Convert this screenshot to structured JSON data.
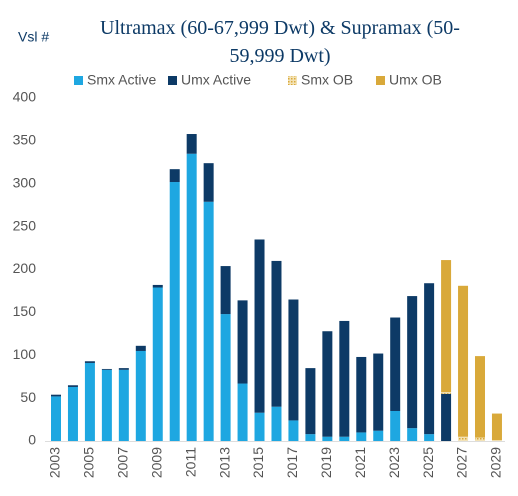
{
  "chart_data": {
    "type": "stacked_bar",
    "title": "Ultramax (60-67,999 Dwt) & Supramax (50-59,999 Dwt)",
    "y_label": "Vsl #",
    "categories": [
      "2003",
      null,
      "2005",
      null,
      "2007",
      null,
      "2009",
      null,
      "2011",
      null,
      "2013",
      null,
      "2015",
      null,
      "2017",
      null,
      "2019",
      null,
      "2021",
      null,
      "2023",
      null,
      "2025",
      null,
      "2027",
      null,
      "2029"
    ],
    "series": [
      {
        "name": "Smx Active",
        "color": "#1ea7e1",
        "values": [
          52,
          63,
          91,
          83,
          83,
          105,
          179,
          302,
          335,
          279,
          148,
          67,
          33,
          40,
          24,
          8,
          5,
          5,
          10,
          12,
          35,
          15,
          8,
          0,
          0,
          0,
          0
        ]
      },
      {
        "name": "Umx Active",
        "color": "#0d3a66",
        "values": [
          2,
          2,
          2,
          1,
          2,
          6,
          3,
          15,
          23,
          45,
          56,
          97,
          202,
          170,
          141,
          77,
          123,
          135,
          88,
          90,
          109,
          154,
          176,
          55,
          0,
          0,
          0
        ]
      },
      {
        "name": "Smx OB",
        "color": "#d9a93a",
        "hatch": true,
        "values": [
          0,
          0,
          0,
          0,
          0,
          0,
          0,
          0,
          0,
          0,
          0,
          0,
          0,
          0,
          0,
          0,
          0,
          0,
          0,
          0,
          0,
          0,
          0,
          2,
          5,
          4,
          1
        ]
      },
      {
        "name": "Umx OB",
        "color": "#d9a93a",
        "values": [
          0,
          0,
          0,
          0,
          0,
          0,
          0,
          0,
          0,
          0,
          0,
          0,
          0,
          0,
          0,
          0,
          0,
          0,
          0,
          0,
          0,
          0,
          0,
          154,
          176,
          95,
          31
        ]
      }
    ],
    "ylim": [
      0,
      400
    ],
    "yticks": [
      0,
      50,
      100,
      150,
      200,
      250,
      300,
      350,
      400
    ],
    "legend": "top"
  }
}
